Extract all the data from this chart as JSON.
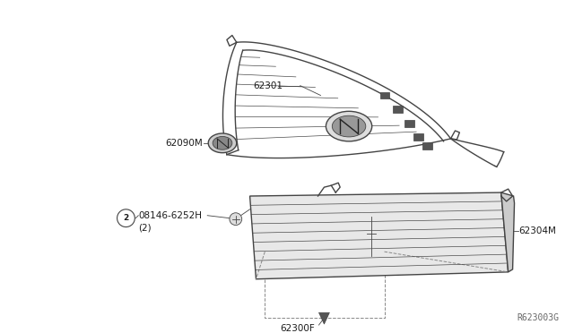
{
  "bg_color": "#ffffff",
  "fig_width": 6.4,
  "fig_height": 3.72,
  "dpi": 100,
  "watermark": "R623003G",
  "text_color": "#1a1a1a",
  "line_color": "#444444",
  "label_62301": "62301",
  "label_62090M": "62090M",
  "label_08146": "08146-6252H",
  "label_08146_qty": "(2)",
  "label_62304M": "62304M",
  "label_62300F": "62300F",
  "circle_num": "2"
}
